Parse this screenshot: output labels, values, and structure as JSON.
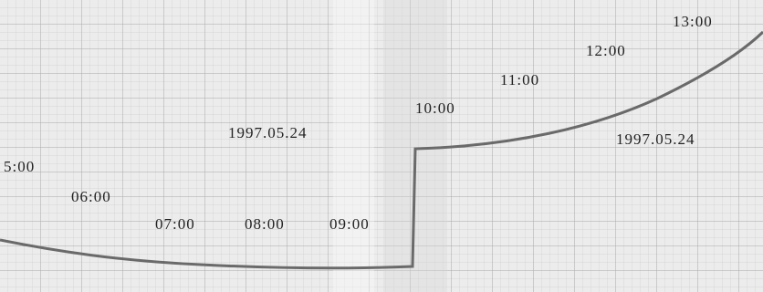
{
  "time_labels": [
    "5:00",
    "06:00",
    "07:00",
    "08:00",
    "09:00",
    "10:00",
    "11:00",
    "12:00",
    "13:00"
  ],
  "dates": [
    "1997.05.24",
    "1997.05.24"
  ]
}
